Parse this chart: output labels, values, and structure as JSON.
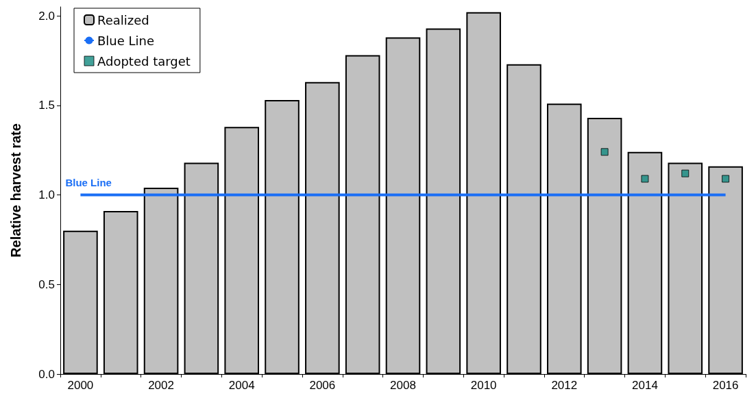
{
  "chart_data": {
    "type": "bar",
    "ylabel": "Relative harvest rate",
    "categories": [
      "2000",
      null,
      "2002",
      null,
      "2004",
      null,
      "2006",
      null,
      "2008",
      null,
      "2010",
      null,
      "2012",
      null,
      "2014",
      null,
      "2016"
    ],
    "series": [
      {
        "name": "Realized",
        "color": "#c0c0c0",
        "values": [
          0.8,
          0.91,
          1.04,
          1.18,
          1.38,
          1.53,
          1.63,
          1.78,
          1.88,
          1.93,
          2.02,
          1.73,
          1.51,
          1.43,
          1.24,
          1.18,
          1.16
        ]
      },
      {
        "name": "Blue Line",
        "type": "line",
        "color": "#1a6ef5",
        "marker": "none",
        "line_style": "solid",
        "values": [
          1,
          1,
          1,
          1,
          1,
          1,
          1,
          1,
          1,
          1,
          1,
          1,
          1,
          1,
          1,
          1,
          1
        ]
      },
      {
        "name": "Adopted target",
        "type": "scatter",
        "color": "#138a80",
        "marker": "square",
        "values": [
          null,
          null,
          null,
          null,
          null,
          null,
          null,
          null,
          null,
          null,
          null,
          null,
          null,
          1.24,
          1.09,
          1.12,
          1.09
        ]
      }
    ],
    "annotations": [
      {
        "text": "Blue Line",
        "x": "2000",
        "y": 1
      }
    ],
    "ylim": [
      0,
      2.05
    ],
    "yticks": [
      {
        "value": 0,
        "label": "0.0"
      },
      0.5,
      {
        "value": 1,
        "label": "1.0"
      },
      1.5,
      {
        "value": 2,
        "label": "2.0"
      }
    ],
    "grid": false,
    "legend": "top left"
  }
}
